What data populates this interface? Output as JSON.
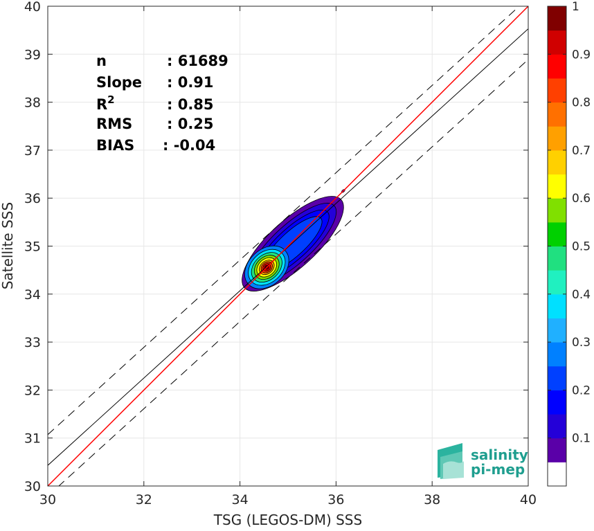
{
  "chart_data": {
    "type": "heatmap",
    "subtype": "density-contour-scatter",
    "xlabel": "TSG (LEGOS-DM) SSS",
    "ylabel": "Satellite SSS",
    "xlim": [
      30,
      40
    ],
    "ylim": [
      30,
      40
    ],
    "xticks": [
      "30",
      "32",
      "34",
      "36",
      "38",
      "40"
    ],
    "yticks": [
      "30",
      "31",
      "32",
      "33",
      "34",
      "35",
      "36",
      "37",
      "38",
      "39",
      "40"
    ],
    "grid": true,
    "stats": [
      {
        "key": "n",
        "value": ": 61689"
      },
      {
        "key": "Slope",
        "value": ": 0.91"
      },
      {
        "key": "R",
        "sup": "2",
        "value": ": 0.85"
      },
      {
        "key": "RMS",
        "value": ": 0.25"
      },
      {
        "key": "BIAS",
        "value": ": -0.04"
      }
    ],
    "lines": {
      "identity": {
        "slope": 1.0,
        "intercept": 0.0,
        "color": "#ff0000"
      },
      "fit": {
        "slope": 0.91,
        "intercept": 3.13,
        "color": "#000000"
      },
      "bounds_offset": 0.64
    },
    "density": {
      "center": [
        34.5,
        34.5
      ],
      "ridge_end": [
        35.7,
        35.6
      ],
      "outlier_point": [
        36.15,
        36.15
      ]
    },
    "colorbar": {
      "min": 0,
      "max": 1,
      "ticks": [
        "0.1",
        "0.2",
        "0.3",
        "0.4",
        "0.5",
        "0.6",
        "0.7",
        "0.8",
        "0.9",
        "1"
      ],
      "levels": [
        "#ffffff",
        "#5a00a8",
        "#2400d8",
        "#0000ff",
        "#0040ff",
        "#0080ff",
        "#20b0ff",
        "#00e0ff",
        "#20f0c0",
        "#20e080",
        "#00d000",
        "#80e000",
        "#ffff00",
        "#ffd000",
        "#ffa000",
        "#ff7000",
        "#ff4000",
        "#ff0000",
        "#d00000",
        "#800000"
      ]
    }
  },
  "logo": {
    "line1": "salinity",
    "line2": "pi-mep"
  }
}
